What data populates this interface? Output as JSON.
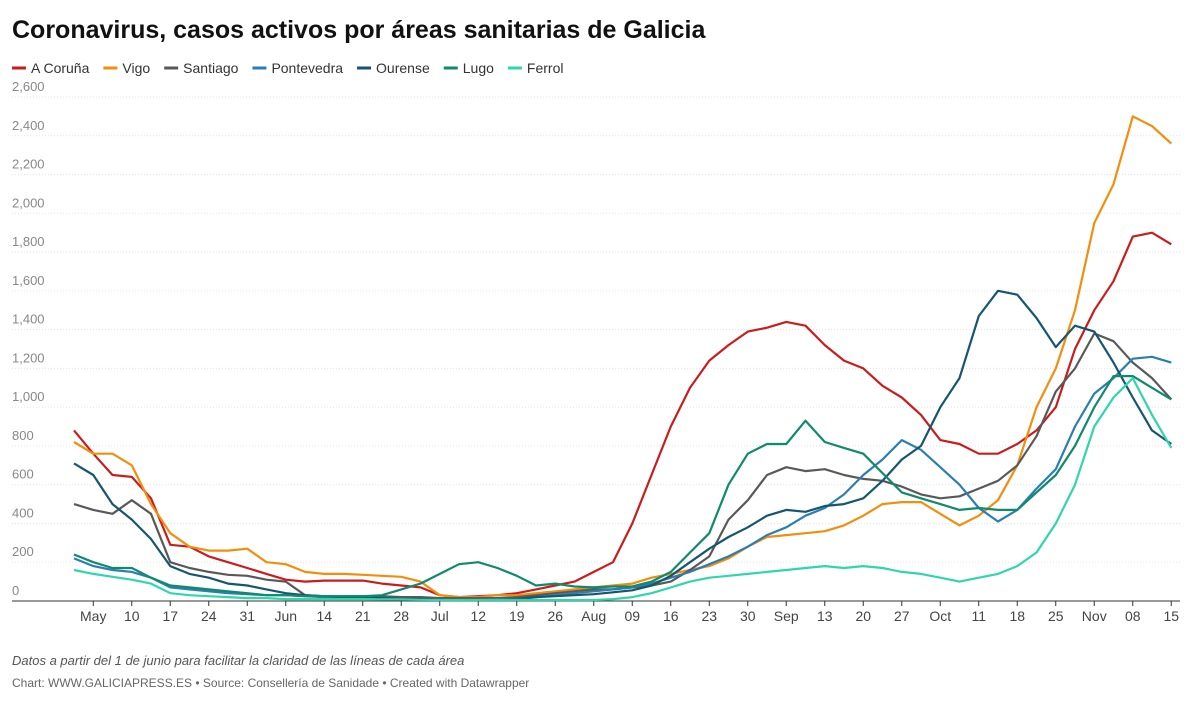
{
  "chart_data": {
    "type": "line",
    "title": "Coronavirus, casos activos por áreas sanitarias de Galicia",
    "note": "Datos a partir del 1 de junio para facilitar la claridad de las líneas de cada área",
    "credit": "Chart: WWW.GALICIAPRESS.ES • Source: Consellería de Sanidade • Created with Datawrapper",
    "categories": [
      null,
      "May",
      null,
      "10",
      null,
      "17",
      null,
      "24",
      null,
      "31",
      null,
      "Jun",
      null,
      "14",
      null,
      "21",
      null,
      "28",
      null,
      "Jul",
      null,
      "12",
      null,
      "19",
      null,
      "26",
      null,
      "Aug",
      null,
      "09",
      null,
      "16",
      null,
      "23",
      null,
      "30",
      null,
      "Sep",
      null,
      "13",
      null,
      "20",
      null,
      "27",
      null,
      "Oct",
      null,
      "11",
      null,
      "18",
      null,
      "25",
      null,
      "Nov",
      null,
      "08",
      null,
      "15"
    ],
    "ylim": [
      0,
      2600
    ],
    "yticks": [
      0,
      200,
      400,
      600,
      800,
      {
        "value": 1000,
        "label": "1,000"
      },
      {
        "value": 1200,
        "label": "1,200"
      },
      {
        "value": 1400,
        "label": "1,400"
      },
      {
        "value": 1600,
        "label": "1,600"
      },
      {
        "value": 1800,
        "label": "1,800"
      },
      {
        "value": 2000,
        "label": "2,000"
      },
      {
        "value": 2200,
        "label": "2,200"
      },
      {
        "value": 2400,
        "label": "2,400"
      },
      {
        "value": 2600,
        "label": "2,600"
      }
    ],
    "grid": true,
    "series": [
      {
        "name": "A Coruña",
        "color": "#c71e1d",
        "values": [
          880,
          760,
          650,
          640,
          530,
          290,
          280,
          230,
          200,
          170,
          140,
          110,
          100,
          105,
          105,
          105,
          90,
          80,
          70,
          30,
          20,
          25,
          30,
          40,
          60,
          80,
          100,
          150,
          200,
          400,
          650,
          900,
          1100,
          1240,
          1320,
          1390,
          1410,
          1440,
          1420,
          1320,
          1240,
          1200,
          1110,
          1050,
          960,
          830,
          810,
          760,
          760,
          810,
          880,
          1000,
          1300,
          1500,
          1650,
          1880,
          1900,
          1840
        ]
      },
      {
        "name": "Vigo",
        "color": "#f28e0c",
        "values": [
          820,
          760,
          760,
          700,
          500,
          350,
          280,
          260,
          260,
          270,
          200,
          190,
          150,
          140,
          140,
          135,
          130,
          125,
          100,
          30,
          20,
          20,
          30,
          30,
          40,
          50,
          60,
          70,
          80,
          90,
          120,
          140,
          160,
          180,
          220,
          280,
          330,
          340,
          350,
          360,
          390,
          440,
          500,
          510,
          510,
          450,
          390,
          440,
          520,
          700,
          1000,
          1200,
          1500,
          1950,
          2150,
          2500,
          2450,
          2360
        ]
      },
      {
        "name": "Santiago",
        "color": "#595959",
        "values": [
          500,
          470,
          450,
          520,
          450,
          200,
          170,
          150,
          135,
          130,
          110,
          100,
          30,
          25,
          25,
          25,
          25,
          20,
          20,
          15,
          15,
          15,
          15,
          20,
          30,
          40,
          50,
          60,
          60,
          70,
          80,
          100,
          160,
          230,
          420,
          520,
          650,
          690,
          670,
          680,
          650,
          630,
          620,
          590,
          550,
          530,
          540,
          580,
          620,
          700,
          850,
          1080,
          1200,
          1380,
          1340,
          1230,
          1150,
          1040
        ]
      },
      {
        "name": "Pontevedra",
        "color": "#2b7fb0",
        "values": [
          220,
          180,
          160,
          150,
          120,
          70,
          60,
          50,
          40,
          35,
          30,
          30,
          25,
          20,
          20,
          20,
          15,
          10,
          10,
          5,
          5,
          5,
          10,
          10,
          20,
          30,
          40,
          50,
          60,
          70,
          90,
          120,
          150,
          190,
          230,
          280,
          340,
          380,
          440,
          480,
          550,
          650,
          730,
          830,
          780,
          690,
          600,
          480,
          410,
          470,
          580,
          680,
          900,
          1070,
          1150,
          1250,
          1260,
          1230
        ]
      },
      {
        "name": "Ourense",
        "color": "#16566e",
        "values": [
          710,
          650,
          500,
          420,
          320,
          180,
          140,
          120,
          90,
          80,
          60,
          40,
          30,
          25,
          20,
          20,
          15,
          10,
          10,
          5,
          5,
          5,
          5,
          10,
          20,
          25,
          30,
          35,
          45,
          55,
          80,
          130,
          200,
          270,
          330,
          380,
          440,
          470,
          460,
          490,
          500,
          530,
          620,
          730,
          800,
          1000,
          1150,
          1470,
          1600,
          1580,
          1460,
          1310,
          1420,
          1390,
          1230,
          1050,
          880,
          810
        ]
      },
      {
        "name": "Lugo",
        "color": "#0f8a6c",
        "values": [
          240,
          200,
          170,
          170,
          120,
          80,
          70,
          60,
          50,
          40,
          30,
          30,
          25,
          25,
          25,
          25,
          30,
          60,
          90,
          140,
          190,
          200,
          170,
          130,
          80,
          90,
          75,
          70,
          75,
          75,
          100,
          150,
          250,
          350,
          600,
          760,
          810,
          810,
          930,
          820,
          790,
          760,
          660,
          560,
          530,
          500,
          470,
          480,
          470,
          470,
          560,
          650,
          800,
          1000,
          1160,
          1160,
          1100,
          1040
        ]
      },
      {
        "name": "Ferrol",
        "color": "#2fd6ac",
        "values": [
          160,
          140,
          125,
          110,
          90,
          40,
          30,
          25,
          20,
          15,
          15,
          10,
          10,
          10,
          10,
          10,
          8,
          8,
          6,
          5,
          5,
          5,
          5,
          5,
          5,
          5,
          5,
          5,
          10,
          20,
          40,
          70,
          100,
          120,
          130,
          140,
          150,
          160,
          170,
          180,
          170,
          180,
          170,
          150,
          140,
          120,
          100,
          120,
          140,
          180,
          250,
          400,
          600,
          900,
          1050,
          1150,
          960,
          790
        ]
      }
    ]
  }
}
